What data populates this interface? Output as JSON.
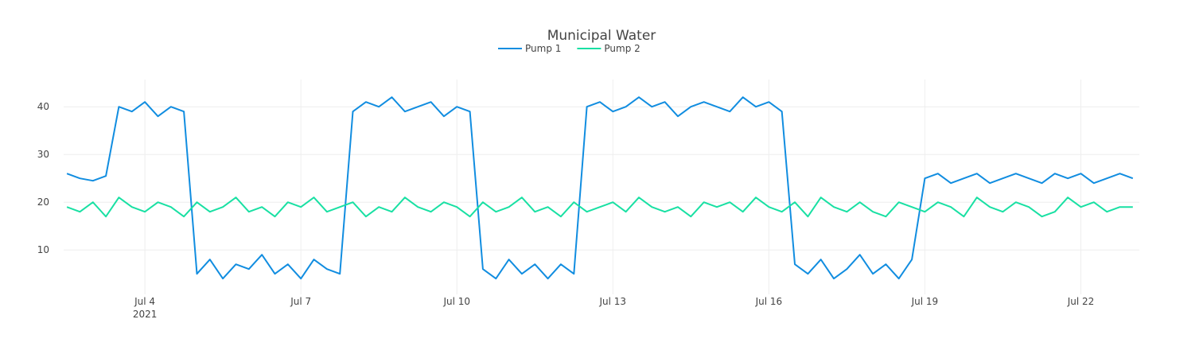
{
  "chart_data": {
    "type": "line",
    "title": "Municipal Water",
    "x": [
      "2021-07-02 12:00",
      "2021-07-02 18:00",
      "2021-07-03 00:00",
      "2021-07-03 06:00",
      "2021-07-03 12:00",
      "2021-07-03 18:00",
      "2021-07-04 00:00",
      "2021-07-04 06:00",
      "2021-07-04 12:00",
      "2021-07-04 18:00",
      "2021-07-05 00:00",
      "2021-07-05 06:00",
      "2021-07-05 12:00",
      "2021-07-05 18:00",
      "2021-07-06 00:00",
      "2021-07-06 06:00",
      "2021-07-06 12:00",
      "2021-07-06 18:00",
      "2021-07-07 00:00",
      "2021-07-07 06:00",
      "2021-07-07 12:00",
      "2021-07-07 18:00",
      "2021-07-08 00:00",
      "2021-07-08 06:00",
      "2021-07-08 12:00",
      "2021-07-08 18:00",
      "2021-07-09 00:00",
      "2021-07-09 06:00",
      "2021-07-09 12:00",
      "2021-07-09 18:00",
      "2021-07-10 00:00",
      "2021-07-10 06:00",
      "2021-07-10 12:00",
      "2021-07-10 18:00",
      "2021-07-11 00:00",
      "2021-07-11 06:00",
      "2021-07-11 12:00",
      "2021-07-11 18:00",
      "2021-07-12 00:00",
      "2021-07-12 06:00",
      "2021-07-12 12:00",
      "2021-07-12 18:00",
      "2021-07-13 00:00",
      "2021-07-13 06:00",
      "2021-07-13 12:00",
      "2021-07-13 18:00",
      "2021-07-14 00:00",
      "2021-07-14 06:00",
      "2021-07-14 12:00",
      "2021-07-14 18:00",
      "2021-07-15 00:00",
      "2021-07-15 06:00",
      "2021-07-15 12:00",
      "2021-07-15 18:00",
      "2021-07-16 00:00",
      "2021-07-16 06:00",
      "2021-07-16 12:00",
      "2021-07-16 18:00",
      "2021-07-17 00:00",
      "2021-07-17 06:00",
      "2021-07-17 12:00",
      "2021-07-17 18:00",
      "2021-07-18 00:00",
      "2021-07-18 06:00",
      "2021-07-18 12:00",
      "2021-07-18 18:00",
      "2021-07-19 00:00",
      "2021-07-19 06:00",
      "2021-07-19 12:00",
      "2021-07-19 18:00",
      "2021-07-20 00:00",
      "2021-07-20 06:00",
      "2021-07-20 12:00",
      "2021-07-20 18:00",
      "2021-07-21 00:00",
      "2021-07-21 06:00",
      "2021-07-21 12:00",
      "2021-07-21 18:00",
      "2021-07-22 00:00",
      "2021-07-22 06:00",
      "2021-07-22 12:00",
      "2021-07-22 18:00",
      "2021-07-23 00:00"
    ],
    "series": [
      {
        "name": "Pump 1",
        "color": "#118de0",
        "values": [
          26,
          25,
          24.5,
          25.5,
          40,
          39,
          41,
          38,
          40,
          39,
          5,
          8,
          4,
          7,
          6,
          9,
          5,
          7,
          4,
          8,
          6,
          5,
          39,
          41,
          40,
          42,
          39,
          40,
          41,
          38,
          40,
          39,
          6,
          4,
          8,
          5,
          7,
          4,
          7,
          5,
          40,
          41,
          39,
          40,
          42,
          40,
          41,
          38,
          40,
          41,
          40,
          39,
          42,
          40,
          41,
          39,
          7,
          5,
          8,
          4,
          6,
          9,
          5,
          7,
          4,
          8,
          25,
          26,
          24,
          25,
          26,
          24,
          25,
          26,
          25,
          24,
          26,
          25,
          26,
          24,
          25,
          26,
          25
        ]
      },
      {
        "name": "Pump 2",
        "color": "#19e0a3",
        "values": [
          19,
          18,
          20,
          17,
          21,
          19,
          18,
          20,
          19,
          17,
          20,
          18,
          19,
          21,
          18,
          19,
          17,
          20,
          19,
          21,
          18,
          19,
          20,
          17,
          19,
          18,
          21,
          19,
          18,
          20,
          19,
          17,
          20,
          18,
          19,
          21,
          18,
          19,
          17,
          20,
          18,
          19,
          20,
          18,
          21,
          19,
          18,
          19,
          17,
          20,
          19,
          20,
          18,
          21,
          19,
          18,
          20,
          17,
          21,
          19,
          18,
          20,
          18,
          17,
          20,
          19,
          18,
          20,
          19,
          17,
          21,
          19,
          18,
          20,
          19,
          17,
          18,
          21,
          19,
          20,
          18,
          19,
          19
        ]
      }
    ],
    "xlim": [
      "2021-07-02 10:30",
      "2021-07-23 03:00"
    ],
    "xticks": [
      {
        "value": "2021-07-04 00:00",
        "label": "Jul 4\n2021"
      },
      {
        "value": "2021-07-07 00:00",
        "label": "Jul 7"
      },
      {
        "value": "2021-07-10 00:00",
        "label": "Jul 10"
      },
      {
        "value": "2021-07-13 00:00",
        "label": "Jul 13"
      },
      {
        "value": "2021-07-16 00:00",
        "label": "Jul 16"
      },
      {
        "value": "2021-07-19 00:00",
        "label": "Jul 19"
      },
      {
        "value": "2021-07-22 00:00",
        "label": "Jul 22"
      }
    ],
    "ylim": [
      0.7,
      45.7
    ],
    "yticks": [
      10,
      20,
      30,
      40
    ],
    "grid": true,
    "legend": "top"
  }
}
